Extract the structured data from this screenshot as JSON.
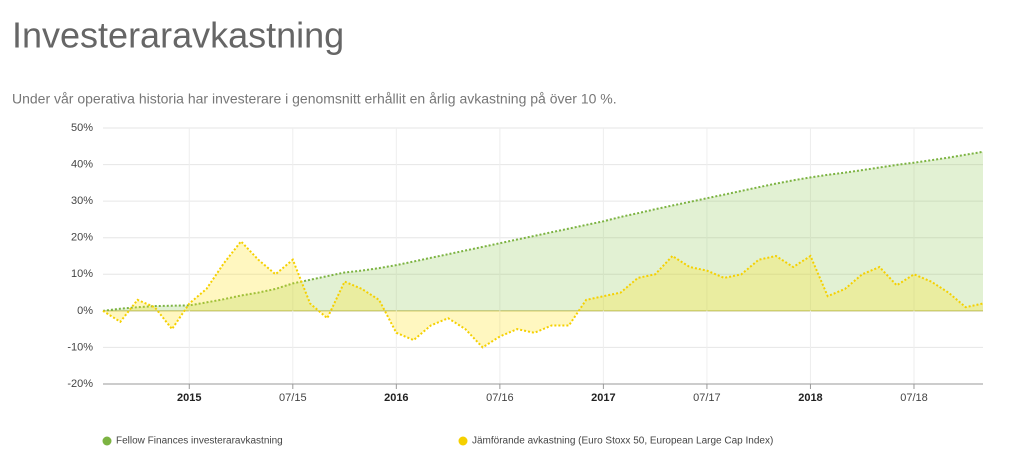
{
  "chart_data": {
    "type": "area",
    "title": "Investeraravkastning",
    "subtitle": "Under vår operativa historia har investerare i genomsnitt erhållit en årlig avkastning på över 10 %.",
    "x": [
      "2014-08",
      "2014-09",
      "2014-10",
      "2014-11",
      "2014-12",
      "2015-01",
      "2015-02",
      "2015-03",
      "2015-04",
      "2015-05",
      "2015-06",
      "2015-07",
      "2015-08",
      "2015-09",
      "2015-10",
      "2015-11",
      "2015-12",
      "2016-01",
      "2016-02",
      "2016-03",
      "2016-04",
      "2016-05",
      "2016-06",
      "2016-07",
      "2016-08",
      "2016-09",
      "2016-10",
      "2016-11",
      "2016-12",
      "2017-01",
      "2017-02",
      "2017-03",
      "2017-04",
      "2017-05",
      "2017-06",
      "2017-07",
      "2017-08",
      "2017-09",
      "2017-10",
      "2017-11",
      "2017-12",
      "2018-01",
      "2018-02",
      "2018-03",
      "2018-04",
      "2018-05",
      "2018-06",
      "2018-07",
      "2018-08",
      "2018-09",
      "2018-10",
      "2018-11"
    ],
    "xlim": [
      "2014-08",
      "2018-11"
    ],
    "xticks": [
      {
        "value": "2015-01",
        "label": "2015"
      },
      {
        "value": "2015-07",
        "label": "07/15"
      },
      {
        "value": "2016-01",
        "label": "2016"
      },
      {
        "value": "2016-07",
        "label": "07/16"
      },
      {
        "value": "2017-01",
        "label": "2017"
      },
      {
        "value": "2017-07",
        "label": "07/17"
      },
      {
        "value": "2018-01",
        "label": "2018"
      },
      {
        "value": "2018-07",
        "label": "07/18"
      }
    ],
    "ylim": [
      -20,
      50
    ],
    "yticks": [
      {
        "value": -20,
        "label": "-20%"
      },
      {
        "value": -10,
        "label": "-10%"
      },
      {
        "value": 0,
        "label": "0%"
      },
      {
        "value": 10,
        "label": "10%"
      },
      {
        "value": 20,
        "label": "20%"
      },
      {
        "value": 30,
        "label": "30%"
      },
      {
        "value": 40,
        "label": "40%"
      },
      {
        "value": 50,
        "label": "50%"
      }
    ],
    "grid": true,
    "series": [
      {
        "name": "Fellow Finances investeraravkastning",
        "color": "#7cb342",
        "values": [
          0,
          0.6,
          1.0,
          1.3,
          1.4,
          1.5,
          2.3,
          3.2,
          4.2,
          5.0,
          6.0,
          7.5,
          8.5,
          9.5,
          10.5,
          11.0,
          11.7,
          12.5,
          13.5,
          14.5,
          15.5,
          16.5,
          17.5,
          18.5,
          19.5,
          20.5,
          21.5,
          22.5,
          23.5,
          24.5,
          25.7,
          26.7,
          27.8,
          28.8,
          29.8,
          30.8,
          31.8,
          32.8,
          33.8,
          34.8,
          35.7,
          36.5,
          37.2,
          37.8,
          38.5,
          39.2,
          39.9,
          40.5,
          41.2,
          41.9,
          42.7,
          43.5
        ]
      },
      {
        "name": "Jämförande avkastning (Euro Stoxx 50, European Large Cap Index)",
        "color": "#f5d000",
        "values": [
          0,
          -3,
          3,
          1,
          -5,
          2,
          6,
          13,
          19,
          14,
          10,
          14,
          2,
          -2,
          8,
          6,
          3,
          -6,
          -8,
          -4,
          -2,
          -5,
          -10,
          -7,
          -5,
          -6,
          -4,
          -4,
          3,
          4,
          5,
          9,
          10,
          15,
          12,
          11,
          9,
          10,
          14,
          15,
          12,
          15,
          4,
          6,
          10,
          12,
          7,
          10,
          8,
          5,
          1,
          2
        ]
      }
    ]
  }
}
